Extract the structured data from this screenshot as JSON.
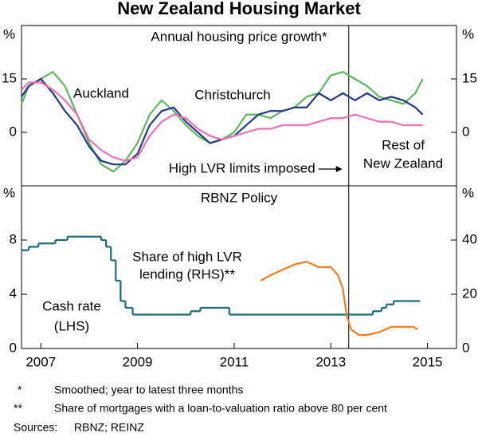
{
  "title": "New Zealand Housing Market",
  "chart_data": [
    {
      "type": "line",
      "subtitle": "Annual housing price growth*",
      "y_unit": "%",
      "xlim": [
        2006.6,
        2015.6
      ],
      "ylim": [
        -15,
        30
      ],
      "yticks": [
        0,
        15
      ],
      "events": [
        {
          "x": 2013.37,
          "label": "High LVR limits imposed"
        }
      ],
      "series": [
        {
          "label": [
            "Auckland"
          ],
          "color": "#5cb85c",
          "x": [
            2006.6,
            2006.75,
            2007,
            2007.25,
            2007.5,
            2007.75,
            2008,
            2008.25,
            2008.5,
            2008.75,
            2009,
            2009.25,
            2009.5,
            2009.75,
            2010,
            2010.25,
            2010.5,
            2010.75,
            2011,
            2011.25,
            2011.5,
            2011.75,
            2012,
            2012.25,
            2012.5,
            2012.75,
            2013,
            2013.25,
            2013.5,
            2013.75,
            2014,
            2014.25,
            2014.5,
            2014.75,
            2014.9
          ],
          "values": [
            8,
            13,
            15,
            17,
            13,
            5,
            -3,
            -9,
            -11,
            -8,
            -3,
            5,
            9,
            6,
            2,
            -1,
            -3,
            -2,
            0,
            5,
            5,
            4,
            6,
            7,
            10,
            11,
            16,
            17,
            15,
            13,
            10,
            9,
            8,
            11,
            15
          ]
        },
        {
          "label": [
            "Christchurch"
          ],
          "color": "#1f3a8a",
          "x": [
            2006.6,
            2006.75,
            2007,
            2007.25,
            2007.5,
            2007.75,
            2008,
            2008.25,
            2008.5,
            2008.75,
            2009,
            2009.25,
            2009.5,
            2009.75,
            2010,
            2010.25,
            2010.5,
            2010.75,
            2011,
            2011.25,
            2011.5,
            2011.75,
            2012,
            2012.25,
            2012.5,
            2012.75,
            2013,
            2013.25,
            2013.5,
            2013.75,
            2014,
            2014.25,
            2014.5,
            2014.75,
            2014.9
          ],
          "values": [
            10,
            13,
            15,
            11,
            6,
            2,
            -4,
            -8,
            -9,
            -9,
            -6,
            2,
            6,
            7,
            3,
            0,
            -3,
            -2,
            -1,
            2,
            5,
            6,
            6,
            7,
            7,
            11,
            9,
            11,
            9,
            11,
            9,
            10,
            9,
            7,
            5
          ]
        },
        {
          "label": [
            "Rest of",
            "New Zealand"
          ],
          "color": "#f06eb4",
          "x": [
            2006.6,
            2006.75,
            2007,
            2007.25,
            2007.5,
            2007.75,
            2008,
            2008.25,
            2008.5,
            2008.75,
            2009,
            2009.25,
            2009.5,
            2009.75,
            2010,
            2010.25,
            2010.5,
            2010.75,
            2011,
            2011.25,
            2011.5,
            2011.75,
            2012,
            2012.25,
            2012.5,
            2012.75,
            2013,
            2013.25,
            2013.5,
            2013.75,
            2014,
            2014.25,
            2014.5,
            2014.75,
            2014.9
          ],
          "values": [
            12,
            14,
            14,
            12,
            9,
            5,
            -2,
            -5,
            -7,
            -8,
            -7,
            -1,
            3,
            5,
            4,
            1,
            -1,
            -2,
            -1,
            0,
            1,
            1,
            2,
            2,
            2,
            3,
            4,
            4,
            5,
            4,
            3,
            3,
            2,
            2,
            2
          ]
        }
      ]
    },
    {
      "type": "line",
      "subtitle": "RBNZ Policy",
      "y_unit": "%",
      "xlim": [
        2006.6,
        2015.6
      ],
      "xticks": [
        2007,
        2009,
        2011,
        2013,
        2015
      ],
      "ylim": [
        0,
        12
      ],
      "yticks": [
        0,
        4,
        8
      ],
      "y2lim": [
        0,
        60
      ],
      "y2ticks": [
        0,
        20,
        40
      ],
      "events": [
        {
          "x": 2013.37
        }
      ],
      "series": [
        {
          "label": [
            "Cash rate",
            "(LHS)"
          ],
          "color": "#1b6d7a",
          "step": true,
          "x": [
            2006.6,
            2006.75,
            2006.95,
            2007.3,
            2007.55,
            2008.25,
            2008.35,
            2008.45,
            2008.55,
            2008.65,
            2008.75,
            2008.9,
            2010.1,
            2010.3,
            2010.9,
            2013.87,
            2014.05,
            2014.15,
            2014.3,
            2014.85
          ],
          "values": [
            7.25,
            7.5,
            7.75,
            8.0,
            8.25,
            8.0,
            7.5,
            6.5,
            5.0,
            3.5,
            3.0,
            2.5,
            2.75,
            3.0,
            2.5,
            2.75,
            3.0,
            3.25,
            3.5,
            3.5
          ]
        },
        {
          "label": [
            "Share of high LVR",
            "lending (RHS)**"
          ],
          "color": "#f47c20",
          "axis": "y2",
          "x": [
            2011.55,
            2011.75,
            2012,
            2012.25,
            2012.5,
            2012.75,
            2013,
            2013.15,
            2013.25,
            2013.33,
            2013.42,
            2013.58,
            2013.75,
            2014,
            2014.25,
            2014.5,
            2014.7,
            2014.8
          ],
          "values": [
            25,
            27,
            29,
            31,
            32,
            30,
            30,
            27,
            22,
            12,
            7,
            5,
            5,
            6,
            8,
            8,
            8,
            7
          ]
        }
      ]
    }
  ],
  "notes": [
    [
      "*",
      "Smoothed; year to latest three months"
    ],
    [
      "**",
      "Share of mortgages with a loan-to-valuation ratio above 80 per cent"
    ],
    [
      "Sources:",
      "RBNZ; REINZ"
    ]
  ]
}
